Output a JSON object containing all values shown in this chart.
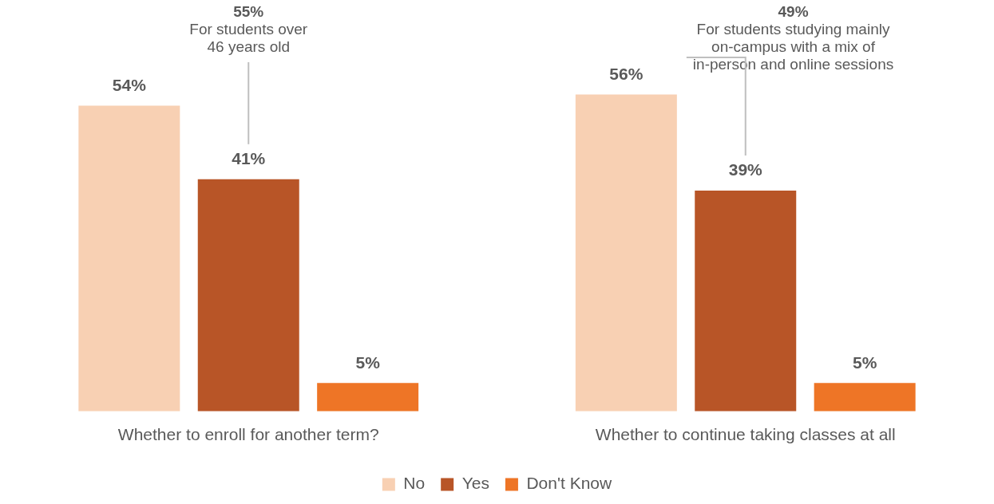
{
  "chart_data": {
    "type": "bar",
    "categories": [
      "Whether to enroll for another term?",
      "Whether to continue taking classes at all"
    ],
    "series": [
      {
        "name": "No",
        "color": "#f8d0b3",
        "values": [
          54,
          56
        ],
        "value_labels": [
          "54%",
          "56%"
        ]
      },
      {
        "name": "Yes",
        "color": "#b85527",
        "values": [
          41,
          39
        ],
        "value_labels": [
          "41%",
          "39%"
        ]
      },
      {
        "name": "Don't Know",
        "color": "#ee7526",
        "values": [
          5,
          5
        ],
        "value_labels": [
          "5%",
          "5%"
        ]
      }
    ],
    "legend": "bottom",
    "grid": false,
    "annotations": [
      "55%\nFor students over\n46 years old",
      "49%\nFor students studying mainly\non-campus with a mix of\nin-person and online sessions"
    ]
  }
}
